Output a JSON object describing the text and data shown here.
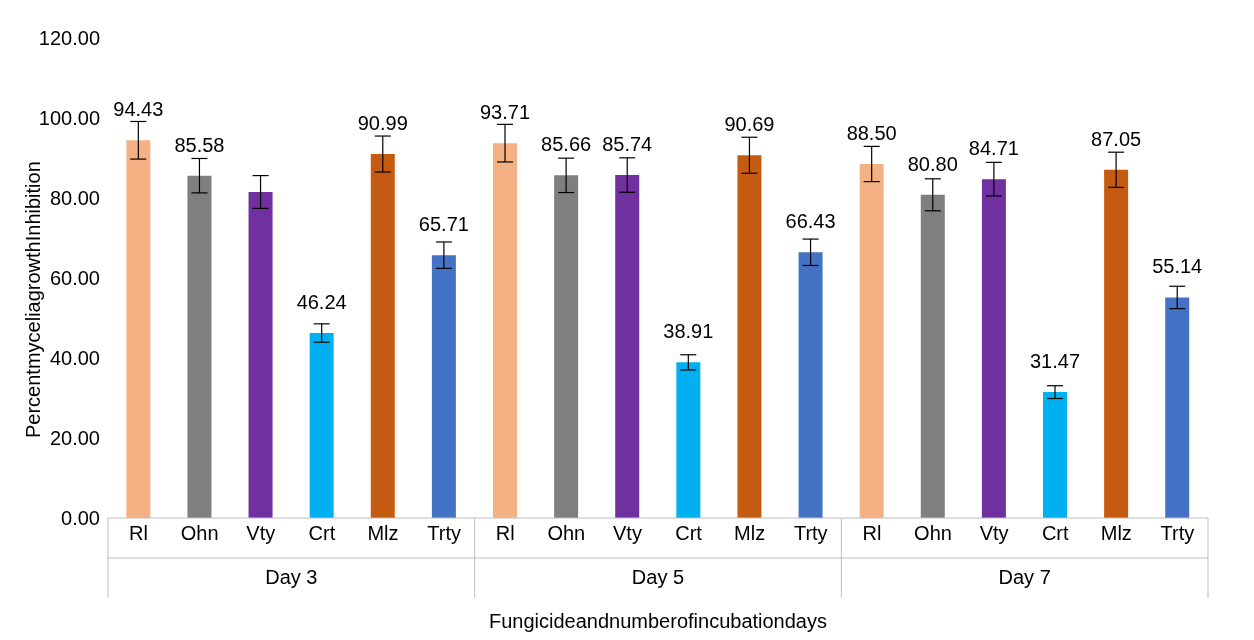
{
  "chart_data": {
    "type": "bar",
    "categories": [
      "Rl",
      "Ohn",
      "Vty",
      "Crt",
      "Mlz",
      "Trty",
      "Rl",
      "Ohn",
      "Vty",
      "Crt",
      "Mlz",
      "Trty",
      "Rl",
      "Ohn",
      "Vty",
      "Crt",
      "Mlz",
      "Trty"
    ],
    "values": [
      94.43,
      85.58,
      81.5,
      46.24,
      90.99,
      65.71,
      93.71,
      85.66,
      85.74,
      38.91,
      90.69,
      66.43,
      88.5,
      80.8,
      84.71,
      31.47,
      87.05,
      55.14
    ],
    "errors": [
      4.7,
      4.3,
      4.1,
      2.3,
      4.5,
      3.3,
      4.7,
      4.3,
      4.3,
      1.9,
      4.5,
      3.3,
      4.4,
      4.0,
      4.2,
      1.6,
      4.4,
      2.8
    ],
    "value_labels": [
      "94.43",
      "85.58",
      null,
      "46.24",
      "90.99",
      "65.71",
      "93.71",
      "85.66",
      "85.74",
      "38.91",
      "90.69",
      "66.43",
      "88.50",
      "80.80",
      "84.71",
      "31.47",
      "87.05",
      "55.14"
    ],
    "colors": [
      "#f4b183",
      "#7f7f7f",
      "#7030a0",
      "#00b0f0",
      "#c55a11",
      "#4472c4",
      "#f4b183",
      "#7f7f7f",
      "#7030a0",
      "#00b0f0",
      "#c55a11",
      "#4472c4",
      "#f4b183",
      "#7f7f7f",
      "#7030a0",
      "#00b0f0",
      "#c55a11",
      "#4472c4"
    ],
    "ylim": [
      0,
      120
    ],
    "yticks": [
      {
        "value": 0,
        "label": "0.00"
      },
      {
        "value": 20,
        "label": "20.00"
      },
      {
        "value": 40,
        "label": "40.00"
      },
      {
        "value": 60,
        "label": "60.00"
      },
      {
        "value": 80,
        "label": "80.00"
      },
      {
        "value": 100,
        "label": "100.00"
      },
      {
        "value": 120,
        "label": "120.00"
      }
    ],
    "ylabel": "PercentmyceliagrowthInhibition",
    "xlabel": "Fungicideandnumberofincubationdays",
    "annotations": [
      "Day 3",
      "Day 5",
      "Day 7"
    ],
    "grid": false,
    "legend": false
  }
}
